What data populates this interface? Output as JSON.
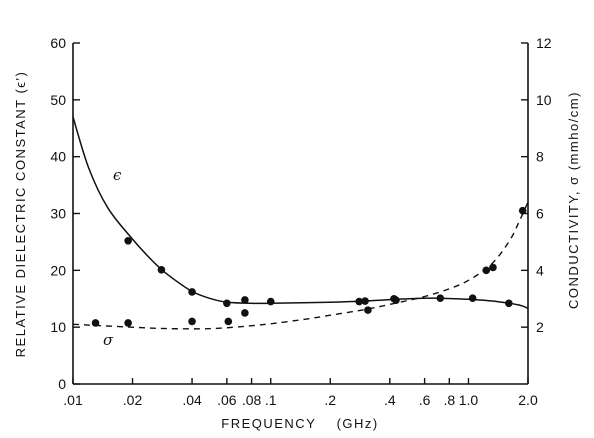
{
  "chart_data": {
    "type": "scatter",
    "xlabel": "FREQUENCY    (GHz)",
    "ylabel_left": "RELATIVE DIELECTRIC CONSTANT  (ϵ')",
    "ylabel_right": "CONDUCTIVITY, σ (mmho/cm)",
    "x_scale": "log",
    "xlim": [
      0.01,
      2.0
    ],
    "ylim_left": [
      0,
      60
    ],
    "ylim_right": [
      0,
      12
    ],
    "x_ticks": [
      {
        "value": 0.01,
        "label": ".01"
      },
      {
        "value": 0.02,
        "label": ".02"
      },
      {
        "value": 0.04,
        "label": ".04"
      },
      {
        "value": 0.06,
        "label": ".06"
      },
      {
        "value": 0.08,
        "label": ".08"
      },
      {
        "value": 0.1,
        "label": ".1"
      },
      {
        "value": 0.2,
        "label": ".2"
      },
      {
        "value": 0.4,
        "label": ".4"
      },
      {
        "value": 0.6,
        "label": ".6"
      },
      {
        "value": 0.8,
        "label": ".8"
      },
      {
        "value": 1.0,
        "label": "1.0"
      },
      {
        "value": 2.0,
        "label": "2.0"
      }
    ],
    "y_ticks_left": [
      0,
      10,
      20,
      30,
      40,
      50,
      60
    ],
    "y_ticks_right": [
      2,
      4,
      6,
      8,
      10,
      12
    ],
    "series": [
      {
        "name": "ϵ",
        "axis": "left",
        "style": "solid",
        "points": [
          [
            0.019,
            25.2
          ],
          [
            0.028,
            20.1
          ],
          [
            0.04,
            16.2
          ],
          [
            0.06,
            14.2
          ],
          [
            0.074,
            14.8
          ],
          [
            0.1,
            14.5
          ],
          [
            0.3,
            14.6
          ],
          [
            0.42,
            15.0
          ],
          [
            0.72,
            15.1
          ],
          [
            1.05,
            15.1
          ],
          [
            1.6,
            14.2
          ]
        ],
        "curve": [
          [
            0.01,
            47
          ],
          [
            0.012,
            38
          ],
          [
            0.015,
            31
          ],
          [
            0.02,
            25.5
          ],
          [
            0.025,
            21.8
          ],
          [
            0.03,
            19.3
          ],
          [
            0.04,
            16.3
          ],
          [
            0.05,
            15.0
          ],
          [
            0.06,
            14.4
          ],
          [
            0.08,
            14.2
          ],
          [
            0.1,
            14.2
          ],
          [
            0.2,
            14.4
          ],
          [
            0.3,
            14.6
          ],
          [
            0.5,
            15.0
          ],
          [
            0.7,
            15.1
          ],
          [
            1.0,
            14.9
          ],
          [
            1.4,
            14.5
          ],
          [
            1.8,
            13.9
          ],
          [
            2.0,
            13.3
          ]
        ]
      },
      {
        "name": "σ",
        "axis": "right",
        "style": "dashed",
        "points": [
          [
            0.013,
            2.15
          ],
          [
            0.019,
            2.15
          ],
          [
            0.04,
            2.2
          ],
          [
            0.061,
            2.2
          ],
          [
            0.074,
            2.5
          ],
          [
            0.28,
            2.9
          ],
          [
            0.31,
            2.6
          ],
          [
            0.43,
            2.95
          ],
          [
            1.23,
            4.0
          ],
          [
            1.33,
            4.1
          ],
          [
            1.88,
            6.1
          ]
        ],
        "curve": [
          [
            0.01,
            2.1
          ],
          [
            0.02,
            2.0
          ],
          [
            0.03,
            1.95
          ],
          [
            0.05,
            1.95
          ],
          [
            0.08,
            2.05
          ],
          [
            0.1,
            2.12
          ],
          [
            0.15,
            2.28
          ],
          [
            0.2,
            2.42
          ],
          [
            0.3,
            2.62
          ],
          [
            0.4,
            2.8
          ],
          [
            0.6,
            3.08
          ],
          [
            0.8,
            3.35
          ],
          [
            1.0,
            3.65
          ],
          [
            1.3,
            4.2
          ],
          [
            1.6,
            5.0
          ],
          [
            1.8,
            5.7
          ],
          [
            2.0,
            6.4
          ]
        ]
      }
    ]
  }
}
